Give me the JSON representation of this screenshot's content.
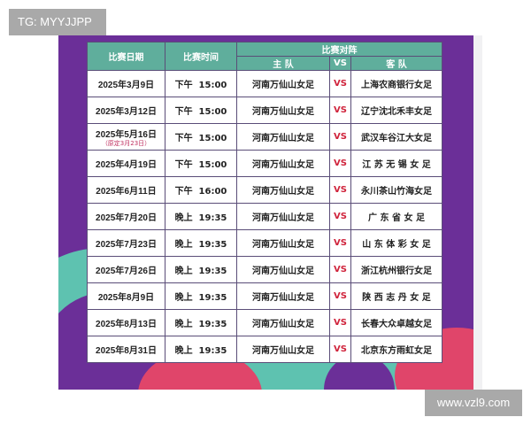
{
  "watermarks": {
    "top_left": "TG: MYYJJPP",
    "bottom_right": "www.vzl9.com"
  },
  "colors": {
    "background": "#6b2f98",
    "header": "#5fae9c",
    "vs": "#d0243c",
    "accent_teal": "#5ec2b0",
    "accent_pink": "#e0456a"
  },
  "table": {
    "headers": {
      "date": "比赛日期",
      "time": "比赛时间",
      "matchup": "比赛对阵",
      "home": "主 队",
      "vs": "VS",
      "away": "客 队"
    },
    "rows": [
      {
        "date": "2025年3月9日",
        "time": "下午  15:00",
        "home": "河南万仙山女足",
        "vs": "VS",
        "away": "上海农商银行女足"
      },
      {
        "date": "2025年3月12日",
        "time": "下午  15:00",
        "home": "河南万仙山女足",
        "vs": "VS",
        "away": "辽宁沈北禾丰女足"
      },
      {
        "date": "2025年5月16日",
        "note": "（原定3月23日）",
        "time": "下午  15:00",
        "home": "河南万仙山女足",
        "vs": "VS",
        "away": "武汉车谷江大女足"
      },
      {
        "date": "2025年4月19日",
        "time": "下午  15:00",
        "home": "河南万仙山女足",
        "vs": "VS",
        "away": "江 苏 无 锡 女 足"
      },
      {
        "date": "2025年6月11日",
        "time": "下午  16:00",
        "home": "河南万仙山女足",
        "vs": "VS",
        "away": "永川茶山竹海女足"
      },
      {
        "date": "2025年7月20日",
        "time": "晚上  19:35",
        "home": "河南万仙山女足",
        "vs": "VS",
        "away": "广 东 省 女 足"
      },
      {
        "date": "2025年7月23日",
        "time": "晚上  19:35",
        "home": "河南万仙山女足",
        "vs": "VS",
        "away": "山 东 体 彩 女 足"
      },
      {
        "date": "2025年7月26日",
        "time": "晚上  19:35",
        "home": "河南万仙山女足",
        "vs": "VS",
        "away": "浙江杭州银行女足"
      },
      {
        "date": "2025年8月9日",
        "time": "晚上  19:35",
        "home": "河南万仙山女足",
        "vs": "VS",
        "away": "陕 西 志 丹 女 足"
      },
      {
        "date": "2025年8月13日",
        "time": "晚上  19:35",
        "home": "河南万仙山女足",
        "vs": "VS",
        "away": "长春大众卓越女足"
      },
      {
        "date": "2025年8月31日",
        "time": "晚上  19:35",
        "home": "河南万仙山女足",
        "vs": "VS",
        "away": "北京东方雨虹女足"
      }
    ]
  }
}
